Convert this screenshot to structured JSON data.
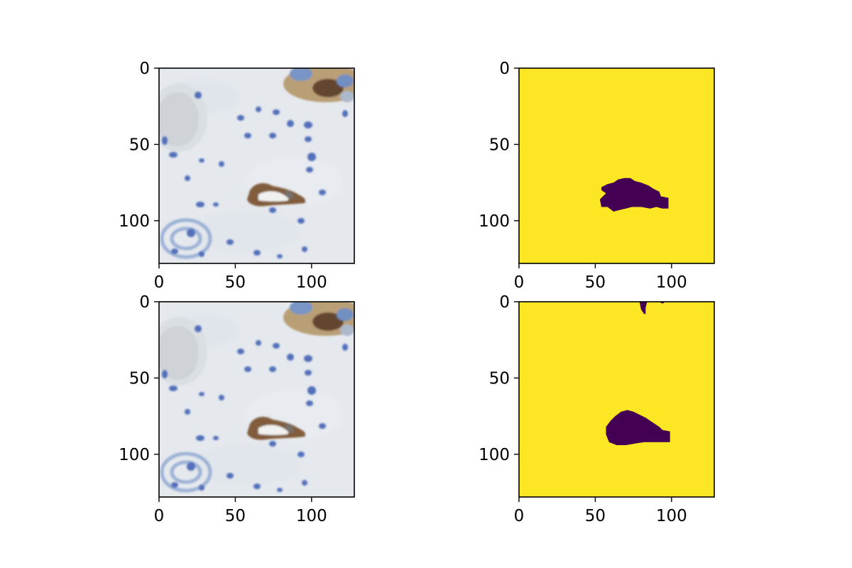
{
  "figure": {
    "layout": "2x2 subplots"
  },
  "chart_data": [
    {
      "type": "image",
      "content": "histology tile (IHC, blue nuclei, brown membrane staining)",
      "xlim": [
        0,
        128
      ],
      "ylim": [
        128,
        0
      ],
      "xticks": [
        0,
        50,
        100
      ],
      "yticks": [
        0,
        50,
        100
      ],
      "xtick_labels": [
        "0",
        "50",
        "100"
      ],
      "ytick_labels": [
        "0",
        "50",
        "100"
      ]
    },
    {
      "type": "heatmap",
      "content": "binary mask",
      "colormap": "viridis",
      "background_color": "#fde725",
      "region_color": "#440154",
      "xlim": [
        0,
        128
      ],
      "ylim": [
        128,
        0
      ],
      "xticks": [
        0,
        50,
        100
      ],
      "yticks": [
        0,
        50,
        100
      ],
      "xtick_labels": [
        "0",
        "50",
        "100"
      ],
      "ytick_labels": [
        "0",
        "50",
        "100"
      ],
      "regions": [
        {
          "polygon": [
            [
              54,
              78
            ],
            [
              58,
              76
            ],
            [
              62,
              75
            ],
            [
              65,
              73
            ],
            [
              69,
              72
            ],
            [
              73,
              72
            ],
            [
              76,
              74
            ],
            [
              80,
              75
            ],
            [
              85,
              77
            ],
            [
              88,
              79
            ],
            [
              92,
              81
            ],
            [
              93,
              84
            ],
            [
              98,
              85
            ],
            [
              98,
              92
            ],
            [
              94,
              92
            ],
            [
              90,
              91
            ],
            [
              86,
              92
            ],
            [
              80,
              91
            ],
            [
              74,
              91
            ],
            [
              70,
              92
            ],
            [
              66,
              93
            ],
            [
              62,
              94
            ],
            [
              58,
              91
            ],
            [
              54,
              91
            ],
            [
              53,
              86
            ],
            [
              57,
              82
            ],
            [
              54,
              80
            ]
          ]
        }
      ]
    },
    {
      "type": "image",
      "content": "histology tile (same tile)",
      "xlim": [
        0,
        128
      ],
      "ylim": [
        128,
        0
      ],
      "xticks": [
        0,
        50,
        100
      ],
      "yticks": [
        0,
        50,
        100
      ],
      "xtick_labels": [
        "0",
        "50",
        "100"
      ],
      "ytick_labels": [
        "0",
        "50",
        "100"
      ]
    },
    {
      "type": "heatmap",
      "content": "binary mask",
      "colormap": "viridis",
      "background_color": "#fde725",
      "region_color": "#440154",
      "xlim": [
        0,
        128
      ],
      "ylim": [
        128,
        0
      ],
      "xticks": [
        0,
        50,
        100
      ],
      "yticks": [
        0,
        50,
        100
      ],
      "xtick_labels": [
        "0",
        "50",
        "100"
      ],
      "ytick_labels": [
        "0",
        "50",
        "100"
      ],
      "regions": [
        {
          "polygon": [
            [
              57,
              82
            ],
            [
              60,
              78
            ],
            [
              63,
              75
            ],
            [
              67,
              72
            ],
            [
              71,
              71
            ],
            [
              75,
              72
            ],
            [
              79,
              74
            ],
            [
              83,
              76
            ],
            [
              86,
              78
            ],
            [
              89,
              80
            ],
            [
              92,
              82
            ],
            [
              94,
              84
            ],
            [
              99,
              85
            ],
            [
              99,
              92
            ],
            [
              94,
              92
            ],
            [
              88,
              92
            ],
            [
              82,
              92
            ],
            [
              76,
              93
            ],
            [
              70,
              94
            ],
            [
              64,
              94
            ],
            [
              59,
              92
            ],
            [
              57,
              87
            ]
          ]
        },
        {
          "polygon": [
            [
              79,
              0
            ],
            [
              84,
              0
            ],
            [
              83,
              4
            ],
            [
              83,
              8
            ],
            [
              82,
              8
            ],
            [
              80,
              5
            ]
          ]
        },
        {
          "polygon": [
            [
              93,
              0
            ],
            [
              95,
              0
            ],
            [
              95,
              1
            ],
            [
              93,
              1
            ]
          ]
        }
      ]
    }
  ]
}
